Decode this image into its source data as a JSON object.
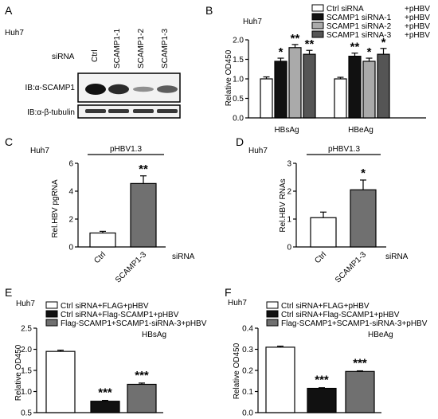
{
  "panel_labels": [
    "A",
    "B",
    "C",
    "D",
    "E",
    "F"
  ],
  "panelA": {
    "cell_line": "Huh7",
    "row_label": "siRNA",
    "lanes": [
      "Ctrl",
      "SCAMP1-1",
      "SCAMP1-2",
      "SCAMP1-3"
    ],
    "blot_labels": [
      "IB:α-SCAMP1",
      "IB:α-β-tubulin"
    ],
    "band_intensity": {
      "SCAMP1": [
        1.0,
        0.85,
        0.25,
        0.55
      ],
      "tubulin": [
        1.0,
        1.0,
        1.0,
        1.0
      ]
    }
  },
  "chart_data": [
    {
      "panel": "B",
      "type": "bar",
      "cell_line": "Huh7",
      "ylabel": "Relative OD450",
      "categories": [
        "HBsAg",
        "HBeAg"
      ],
      "ylim": [
        0,
        2
      ],
      "yticks": [
        "0.0",
        "0.5",
        "1.0",
        "1.5",
        "2.0"
      ],
      "legend_position": "top-right",
      "series": [
        {
          "name": "Ctrl siRNA",
          "suffix": "+pHBV",
          "color": "#ffffff",
          "values": [
            1.0,
            1.0
          ],
          "errors": [
            0.05,
            0.04
          ],
          "sig": [
            "",
            ""
          ]
        },
        {
          "name": "SCAMP1 siRNA-1",
          "suffix": "+pHBV",
          "color": "#111111",
          "values": [
            1.45,
            1.58
          ],
          "errors": [
            0.08,
            0.08
          ],
          "sig": [
            "*",
            "**"
          ]
        },
        {
          "name": "SCAMP1 siRNA-2",
          "suffix": "+pHBV",
          "color": "#aaaaaa",
          "values": [
            1.8,
            1.45
          ],
          "errors": [
            0.08,
            0.08
          ],
          "sig": [
            "**",
            "*"
          ]
        },
        {
          "name": "SCAMP1 siRNA-3",
          "suffix": "+pHBV",
          "color": "#555555",
          "values": [
            1.63,
            1.63
          ],
          "errors": [
            0.1,
            0.15
          ],
          "sig": [
            "**",
            "*"
          ]
        }
      ]
    },
    {
      "panel": "C",
      "type": "bar",
      "cell_line": "Huh7",
      "group_label": "pHBV1.3",
      "ylabel": "Rel.HBV pgRNA",
      "xlabel": "siRNA",
      "categories": [
        "Ctrl",
        "SCAMP1-3"
      ],
      "colors": [
        "#ffffff",
        "#707070"
      ],
      "values": [
        1.0,
        4.55
      ],
      "errors": [
        0.12,
        0.55
      ],
      "sig": [
        "",
        "**"
      ],
      "ylim": [
        0,
        6
      ],
      "yticks": [
        "0",
        "2",
        "4",
        "6"
      ]
    },
    {
      "panel": "D",
      "type": "bar",
      "cell_line": "Huh7",
      "group_label": "pHBV1.3",
      "ylabel": "Rel.HBV RNAs",
      "xlabel": "siRNA",
      "categories": [
        "Ctrl",
        "SCAMP1-3"
      ],
      "colors": [
        "#ffffff",
        "#707070"
      ],
      "values": [
        1.05,
        2.05
      ],
      "errors": [
        0.2,
        0.35
      ],
      "sig": [
        "",
        "*"
      ],
      "ylim": [
        0,
        3
      ],
      "yticks": [
        "0",
        "1",
        "2",
        "3"
      ]
    },
    {
      "panel": "E",
      "type": "bar",
      "cell_line": "Huh7",
      "title": "HBsAg",
      "ylabel": "Relative OD450",
      "legend": [
        "Ctrl siRNA+FLAG+pHBV",
        "Ctrl siRNA+Flag-SCAMP1+pHBV",
        "Flag-SCAMP1+SCAMP1-siRNA-3+pHBV"
      ],
      "colors": [
        "#ffffff",
        "#111111",
        "#707070"
      ],
      "values": [
        1.95,
        0.77,
        1.17
      ],
      "errors": [
        0.03,
        0.02,
        0.03
      ],
      "sig": [
        "",
        "***",
        "***"
      ],
      "ylim": [
        0.5,
        2.5
      ],
      "yticks": [
        "0.5",
        "1.0",
        "1.5",
        "2.0",
        "2.5"
      ]
    },
    {
      "panel": "F",
      "type": "bar",
      "cell_line": "Huh7",
      "title": "HBeAg",
      "ylabel": "Relative OD450",
      "legend": [
        "Ctrl siRNA+FLAG+pHBV",
        "Ctrl siRNA+Flag-SCAMP1+pHBV",
        "Flag-SCAMP1+SCAMP1-siRNA-3+pHBV"
      ],
      "colors": [
        "#ffffff",
        "#111111",
        "#707070"
      ],
      "values": [
        0.31,
        0.115,
        0.195
      ],
      "errors": [
        0.005,
        0.003,
        0.003
      ],
      "sig": [
        "",
        "***",
        "***"
      ],
      "ylim": [
        0.0,
        0.4
      ],
      "yticks": [
        "0.0",
        "0.1",
        "0.2",
        "0.3",
        "0.4"
      ]
    }
  ]
}
